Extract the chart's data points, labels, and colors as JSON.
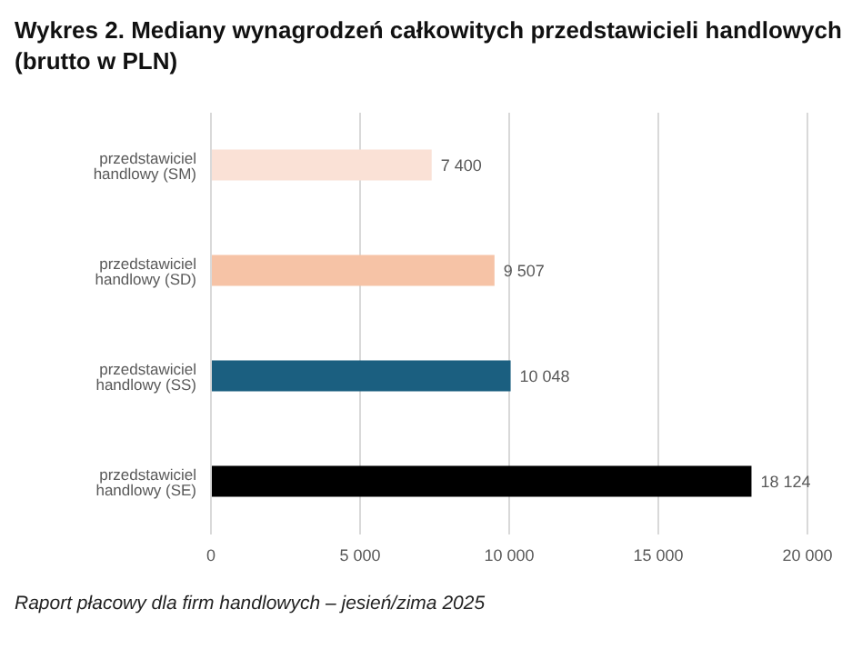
{
  "chart_data": {
    "type": "bar",
    "orientation": "horizontal",
    "title": "Wykres 2. Mediany wynagrodzeń całkowitych przedstawicieli handlowych (brutto w PLN)",
    "categories": [
      "przedstawiciel handlowy (SM)",
      "przedstawiciel handlowy (SD)",
      "przedstawiciel handlowy (SS)",
      "przedstawiciel handlowy (SE)"
    ],
    "values": [
      7400,
      9507,
      10048,
      18124
    ],
    "colors": [
      "#fae1d6",
      "#f6c3a6",
      "#1b5f80",
      "#000000"
    ],
    "value_labels": [
      "7 400",
      "9 507",
      "10 048",
      "18 124"
    ],
    "xlim": [
      0,
      20000
    ],
    "xticks": [
      0,
      {
        "value": 5000,
        "label": "5 000"
      },
      {
        "value": 10000,
        "label": "10 000"
      },
      {
        "value": 15000,
        "label": "15 000"
      },
      {
        "value": 20000,
        "label": "20 000"
      }
    ],
    "grid": "x",
    "annotations": [
      "Raport płacowy dla firm handlowych – jesień/zima 2025"
    ]
  }
}
